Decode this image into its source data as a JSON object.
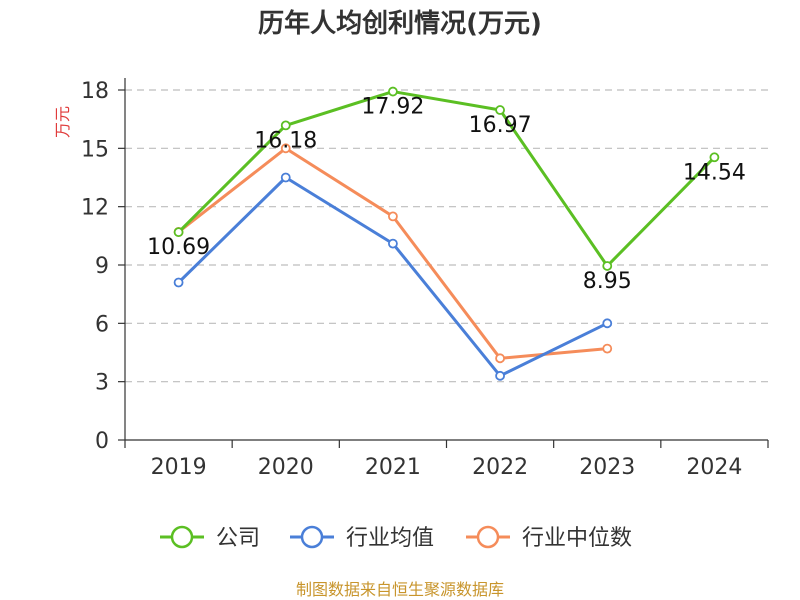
{
  "chart_data": {
    "type": "line",
    "title": "历年人均创利情况(万元)",
    "ylabel": "万元",
    "xlabel": "",
    "categories": [
      "2019",
      "2020",
      "2021",
      "2022",
      "2023",
      "2024"
    ],
    "ylim": [
      0,
      18
    ],
    "yticks": [
      0,
      3,
      6,
      9,
      12,
      15,
      18
    ],
    "grid": "horizontal-dashed",
    "series": [
      {
        "name": "公司",
        "color": "#5bbf23",
        "values": [
          10.69,
          16.18,
          17.92,
          16.97,
          8.95,
          14.54
        ],
        "labels": [
          "10.69",
          "16.18",
          "17.92",
          "16.97",
          "8.95",
          "14.54"
        ]
      },
      {
        "name": "行业均值",
        "color": "#4a7fd8",
        "values": [
          8.1,
          13.5,
          10.1,
          3.3,
          6.0,
          null
        ]
      },
      {
        "name": "行业中位数",
        "color": "#f58c5a",
        "values": [
          10.7,
          15.0,
          11.5,
          4.2,
          4.7,
          null
        ]
      }
    ],
    "legend_position": "bottom",
    "source": "制图数据来自恒生聚源数据库"
  }
}
